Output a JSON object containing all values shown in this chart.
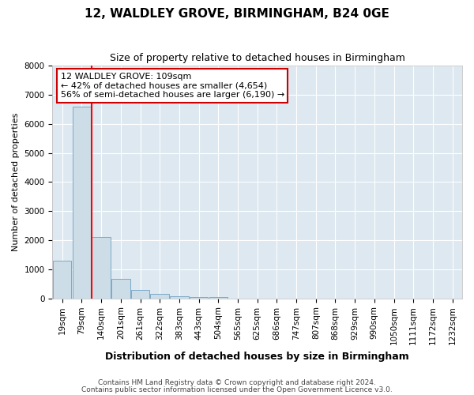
{
  "title": "12, WALDLEY GROVE, BIRMINGHAM, B24 0GE",
  "subtitle": "Size of property relative to detached houses in Birmingham",
  "xlabel": "Distribution of detached houses by size in Birmingham",
  "ylabel": "Number of detached properties",
  "bar_labels": [
    "19sqm",
    "79sqm",
    "140sqm",
    "201sqm",
    "261sqm",
    "322sqm",
    "383sqm",
    "443sqm",
    "504sqm",
    "565sqm",
    "625sqm",
    "686sqm",
    "747sqm",
    "807sqm",
    "868sqm",
    "929sqm",
    "990sqm",
    "1050sqm",
    "1111sqm",
    "1172sqm",
    "1232sqm"
  ],
  "bar_values": [
    1300,
    6600,
    2100,
    660,
    290,
    160,
    80,
    50,
    50,
    0,
    0,
    0,
    0,
    0,
    0,
    0,
    0,
    0,
    0,
    0,
    0
  ],
  "bar_color": "#ccdde8",
  "bar_edgecolor": "#7aaac8",
  "ylim_max": 8000,
  "yticks": [
    0,
    1000,
    2000,
    3000,
    4000,
    5000,
    6000,
    7000,
    8000
  ],
  "red_line_x": 1.5,
  "annotation_line1": "12 WALDLEY GROVE: 109sqm",
  "annotation_line2": "← 42% of detached houses are smaller (4,654)",
  "annotation_line3": "56% of semi-detached houses are larger (6,190) →",
  "annotation_box_edgecolor": "#cc0000",
  "footer1": "Contains HM Land Registry data © Crown copyright and database right 2024.",
  "footer2": "Contains public sector information licensed under the Open Government Licence v3.0.",
  "fig_bg_color": "#ffffff",
  "plot_bg_color": "#dde8f0",
  "grid_color": "#ffffff",
  "title_fontsize": 11,
  "subtitle_fontsize": 9,
  "ylabel_fontsize": 8,
  "xlabel_fontsize": 9,
  "tick_fontsize": 7.5,
  "footer_fontsize": 6.5
}
